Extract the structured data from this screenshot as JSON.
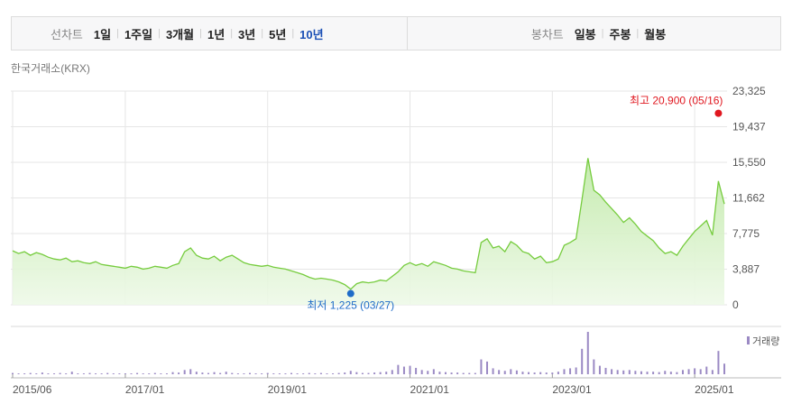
{
  "tabs": {
    "line_chart": {
      "label": "선차트",
      "periods": [
        "1일",
        "1주일",
        "3개월",
        "1년",
        "3년",
        "5년",
        "10년"
      ],
      "active": 6
    },
    "candle_chart": {
      "label": "봉차트",
      "periods": [
        "일봉",
        "주봉",
        "월봉"
      ]
    }
  },
  "source": "한국거래소(KRX)",
  "chart_data": {
    "type": "line",
    "x": [
      "2015/06",
      "2015/07",
      "2015/08",
      "2015/09",
      "2015/10",
      "2015/11",
      "2015/12",
      "2016/01",
      "2016/02",
      "2016/03",
      "2016/04",
      "2016/05",
      "2016/06",
      "2016/07",
      "2016/08",
      "2016/09",
      "2016/10",
      "2016/11",
      "2016/12",
      "2017/01",
      "2017/02",
      "2017/03",
      "2017/04",
      "2017/05",
      "2017/06",
      "2017/07",
      "2017/08",
      "2017/09",
      "2017/10",
      "2017/11",
      "2017/12",
      "2018/01",
      "2018/02",
      "2018/03",
      "2018/04",
      "2018/05",
      "2018/06",
      "2018/07",
      "2018/08",
      "2018/09",
      "2018/10",
      "2018/11",
      "2018/12",
      "2019/01",
      "2019/02",
      "2019/03",
      "2019/04",
      "2019/05",
      "2019/06",
      "2019/07",
      "2019/08",
      "2019/09",
      "2019/10",
      "2019/11",
      "2019/12",
      "2020/01",
      "2020/02",
      "2020/03",
      "2020/04",
      "2020/05",
      "2020/06",
      "2020/07",
      "2020/08",
      "2020/09",
      "2020/10",
      "2020/11",
      "2020/12",
      "2021/01",
      "2021/02",
      "2021/03",
      "2021/04",
      "2021/05",
      "2021/06",
      "2021/07",
      "2021/08",
      "2021/09",
      "2021/10",
      "2021/11",
      "2021/12",
      "2022/01",
      "2022/02",
      "2022/03",
      "2022/04",
      "2022/05",
      "2022/06",
      "2022/07",
      "2022/08",
      "2022/09",
      "2022/10",
      "2022/11",
      "2022/12",
      "2023/01",
      "2023/02",
      "2023/03",
      "2023/04",
      "2023/05",
      "2023/06",
      "2023/07",
      "2023/08",
      "2023/09",
      "2023/10",
      "2023/11",
      "2023/12",
      "2024/01",
      "2024/02",
      "2024/03",
      "2024/04",
      "2024/05",
      "2024/06",
      "2024/07",
      "2024/08",
      "2024/09",
      "2024/10",
      "2024/11",
      "2024/12",
      "2025/01",
      "2025/02",
      "2025/03",
      "2025/04",
      "2025/05",
      "2025/06"
    ],
    "series": [
      {
        "color": "#76cc3e",
        "values": [
          5900,
          5600,
          5800,
          5400,
          5700,
          5500,
          5200,
          5000,
          4900,
          5100,
          4700,
          4800,
          4600,
          4500,
          4700,
          4400,
          4300,
          4200,
          4100,
          4000,
          4200,
          4100,
          3900,
          4000,
          4200,
          4100,
          4000,
          4300,
          4500,
          5800,
          6200,
          5400,
          5100,
          5000,
          5300,
          4800,
          5200,
          5400,
          5000,
          4600,
          4400,
          4300,
          4200,
          4300,
          4100,
          4000,
          3900,
          3700,
          3500,
          3300,
          3000,
          2800,
          2900,
          2800,
          2700,
          2500,
          2200,
          1700,
          2300,
          2500,
          2400,
          2500,
          2700,
          2600,
          3100,
          3600,
          4300,
          4600,
          4300,
          4500,
          4200,
          4700,
          4500,
          4300,
          4000,
          3900,
          3700,
          3600,
          3500,
          6800,
          7200,
          6200,
          6400,
          5800,
          6900,
          6500,
          5800,
          5600,
          5000,
          5300,
          4600,
          4700,
          5000,
          6500,
          6800,
          7200,
          11500,
          16000,
          12500,
          12000,
          11200,
          10500,
          9800,
          9000,
          9500,
          8800,
          8000,
          7500,
          7000,
          6200,
          5600,
          5800,
          5400,
          6400,
          7200,
          8000,
          8600,
          9200,
          7600,
          13500,
          11000
        ]
      },
      {
        "name": "거래량",
        "type": "bar",
        "axis": "y2",
        "color": "#9b8ac4",
        "values": [
          3,
          2,
          2,
          3,
          2,
          4,
          2,
          2,
          3,
          2,
          6,
          2,
          2,
          3,
          2,
          2,
          3,
          2,
          2,
          2,
          2,
          3,
          2,
          2,
          3,
          2,
          2,
          5,
          4,
          10,
          12,
          6,
          4,
          3,
          5,
          3,
          6,
          3,
          2,
          2,
          3,
          2,
          2,
          3,
          2,
          2,
          2,
          3,
          2,
          2,
          3,
          2,
          3,
          2,
          2,
          3,
          4,
          8,
          5,
          3,
          3,
          4,
          5,
          6,
          10,
          22,
          18,
          20,
          15,
          10,
          8,
          12,
          6,
          5,
          4,
          4,
          3,
          3,
          3,
          35,
          30,
          14,
          10,
          8,
          12,
          9,
          6,
          5,
          4,
          5,
          4,
          4,
          6,
          12,
          14,
          16,
          60,
          100,
          35,
          20,
          15,
          12,
          10,
          9,
          10,
          8,
          7,
          6,
          6,
          5,
          8,
          6,
          5,
          10,
          12,
          14,
          12,
          18,
          10,
          55,
          25
        ]
      }
    ],
    "xlim": [
      "2015/06",
      "2025/06"
    ],
    "xticks": [
      "2015/06",
      "2017/01",
      "2019/01",
      "2021/01",
      "2023/01",
      "2025/01"
    ],
    "ylim": [
      0,
      23325
    ],
    "yticks": [
      0,
      {
        "value": 3887,
        "label": "3,887"
      },
      {
        "value": 7775,
        "label": "7,775"
      },
      {
        "value": 11662,
        "label": "11,662"
      },
      {
        "value": 15550,
        "label": "15,550"
      },
      {
        "value": 19437,
        "label": "19,437"
      },
      {
        "value": 23325,
        "label": "23,325"
      }
    ],
    "y2lim": [
      0,
      100
    ],
    "grid": true,
    "annotations": [
      {
        "text": "최고 20,900 (05/16)",
        "x": "2025/05",
        "y": 20900,
        "color": "#e0171f"
      },
      {
        "text": "최저 1,225 (03/27)",
        "x": "2020/03",
        "y": 1225,
        "color": "#1f6cc8"
      }
    ]
  }
}
